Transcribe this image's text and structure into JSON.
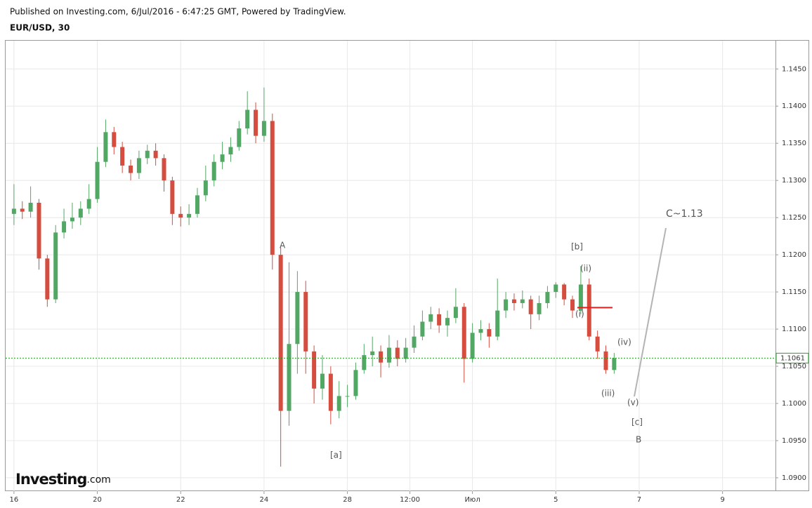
{
  "header": {
    "published": "Published on Investing.com, 6/Jul/2016 - 6:47:25 GMT, Powered by TradingView.",
    "symbol": "EUR/USD, 30",
    "logo": "Investing",
    "logo_suffix": ".com"
  },
  "chart_data": {
    "type": "candlestick",
    "up_color": "#53a764",
    "down_color": "#d54d3f",
    "x": [
      0,
      0.2,
      0.4,
      0.6,
      0.8,
      1,
      1.2,
      1.4,
      1.6,
      1.8,
      2,
      2.2,
      2.4,
      2.6,
      2.8,
      3,
      3.2,
      3.4,
      3.6,
      3.8,
      4,
      4.2,
      4.4,
      4.6,
      4.8,
      5,
      5.2,
      5.4,
      5.6,
      5.8,
      6,
      6.2,
      6.4,
      6.6,
      6.8,
      7,
      7.2,
      7.4,
      7.6,
      7.8,
      8,
      8.2,
      8.4,
      8.6,
      8.8,
      9,
      9.2,
      9.4,
      9.6,
      9.8,
      10,
      10.2,
      10.4,
      10.6,
      10.8,
      11,
      11.2,
      11.4,
      11.6,
      11.8,
      12,
      12.2,
      12.4,
      12.6,
      12.8,
      13,
      13.2,
      13.4,
      13.6,
      13.8,
      14,
      14.2,
      14.4
    ],
    "open": [
      1.1255,
      1.1262,
      1.1258,
      1.127,
      1.1195,
      1.114,
      1.123,
      1.1245,
      1.125,
      1.1262,
      1.1275,
      1.1325,
      1.1365,
      1.1345,
      1.132,
      1.131,
      1.133,
      1.134,
      1.133,
      1.13,
      1.1255,
      1.125,
      1.1255,
      1.128,
      1.13,
      1.1325,
      1.1335,
      1.1345,
      1.137,
      1.1395,
      1.136,
      1.138,
      1.12,
      1.099,
      1.108,
      1.115,
      1.107,
      1.102,
      1.104,
      1.099,
      1.101,
      1.101,
      1.1045,
      1.1065,
      1.107,
      1.1055,
      1.1075,
      1.106,
      1.1075,
      1.109,
      1.111,
      1.112,
      1.1105,
      1.1115,
      1.113,
      1.106,
      1.1095,
      1.11,
      1.109,
      1.1125,
      1.114,
      1.1135,
      1.114,
      1.112,
      1.1135,
      1.115,
      1.116,
      1.114,
      1.1125,
      1.116,
      1.109,
      1.107,
      1.1045
    ],
    "high": [
      1.1295,
      1.1272,
      1.1292,
      1.1275,
      1.12,
      1.124,
      1.1262,
      1.127,
      1.1272,
      1.1295,
      1.1345,
      1.1382,
      1.1372,
      1.1352,
      1.1328,
      1.134,
      1.1348,
      1.135,
      1.1335,
      1.1305,
      1.1265,
      1.1268,
      1.129,
      1.132,
      1.1335,
      1.1352,
      1.1358,
      1.138,
      1.142,
      1.1405,
      1.1425,
      1.139,
      1.121,
      1.119,
      1.1178,
      1.1165,
      1.1078,
      1.1065,
      1.105,
      1.103,
      1.1025,
      1.1055,
      1.108,
      1.109,
      1.1078,
      1.1092,
      1.1085,
      1.1088,
      1.1105,
      1.1125,
      1.113,
      1.1128,
      1.1125,
      1.1155,
      1.1135,
      1.1108,
      1.1112,
      1.1108,
      1.1168,
      1.115,
      1.1148,
      1.1152,
      1.1145,
      1.1145,
      1.1158,
      1.1163,
      1.1162,
      1.1145,
      1.1185,
      1.1168,
      1.1098,
      1.1078,
      1.1068
    ],
    "low": [
      1.124,
      1.1248,
      1.125,
      1.118,
      1.113,
      1.1135,
      1.1222,
      1.1235,
      1.124,
      1.1255,
      1.127,
      1.1318,
      1.1335,
      1.131,
      1.13,
      1.1302,
      1.1322,
      1.132,
      1.1285,
      1.124,
      1.1238,
      1.124,
      1.125,
      1.1272,
      1.1292,
      1.1315,
      1.1325,
      1.134,
      1.1362,
      1.135,
      1.1352,
      1.118,
      1.0915,
      1.097,
      1.104,
      1.104,
      1.1,
      1.1005,
      1.0972,
      1.098,
      1.0995,
      1.1005,
      1.104,
      1.105,
      1.1035,
      1.1048,
      1.105,
      1.1055,
      1.1068,
      1.1085,
      1.11,
      1.1095,
      1.109,
      1.1108,
      1.1028,
      1.1055,
      1.1085,
      1.1075,
      1.1085,
      1.1115,
      1.1125,
      1.1128,
      1.11,
      1.1112,
      1.1128,
      1.1142,
      1.1132,
      1.1115,
      1.112,
      1.1085,
      1.106,
      1.104,
      1.104
    ],
    "close": [
      1.1262,
      1.1258,
      1.127,
      1.1195,
      1.114,
      1.123,
      1.1245,
      1.125,
      1.1262,
      1.1275,
      1.1325,
      1.1365,
      1.1345,
      1.132,
      1.131,
      1.133,
      1.134,
      1.133,
      1.13,
      1.1255,
      1.125,
      1.1255,
      1.128,
      1.13,
      1.1325,
      1.1335,
      1.1345,
      1.137,
      1.1395,
      1.136,
      1.138,
      1.12,
      1.099,
      1.108,
      1.115,
      1.107,
      1.102,
      1.104,
      1.099,
      1.101,
      1.101,
      1.1045,
      1.1065,
      1.107,
      1.1055,
      1.1075,
      1.106,
      1.1075,
      1.109,
      1.111,
      1.112,
      1.1105,
      1.1115,
      1.113,
      1.106,
      1.1095,
      1.11,
      1.109,
      1.1125,
      1.114,
      1.1135,
      1.114,
      1.112,
      1.1135,
      1.115,
      1.116,
      1.114,
      1.1125,
      1.116,
      1.109,
      1.107,
      1.1045,
      1.1061
    ],
    "xlim": [
      -0.2,
      18.27
    ],
    "xticks": [
      {
        "value": 0,
        "label": "16"
      },
      {
        "value": 2,
        "label": "20"
      },
      {
        "value": 4,
        "label": "22"
      },
      {
        "value": 6,
        "label": "24"
      },
      {
        "value": 8,
        "label": "28"
      },
      {
        "value": 9.5,
        "label": "12:00"
      },
      {
        "value": 11,
        "label": "Июл"
      },
      {
        "value": 13,
        "label": "5"
      },
      {
        "value": 15,
        "label": "7"
      },
      {
        "value": 17,
        "label": "9"
      }
    ],
    "ylim": [
      1.0882,
      1.1488
    ],
    "yticks": [
      {
        "value": 1.09,
        "label": "1.0900"
      },
      {
        "value": 1.095,
        "label": "1.0950"
      },
      {
        "value": 1.1,
        "label": "1.1000"
      },
      {
        "value": 1.105,
        "label": "1.1050"
      },
      {
        "value": 1.11,
        "label": "1.1100"
      },
      {
        "value": 1.115,
        "label": "1.1150"
      },
      {
        "value": 1.12,
        "label": "1.1200"
      },
      {
        "value": 1.125,
        "label": "1.1250"
      },
      {
        "value": 1.13,
        "label": "1.1300"
      },
      {
        "value": 1.135,
        "label": "1.1350"
      },
      {
        "value": 1.14,
        "label": "1.1400"
      },
      {
        "value": 1.145,
        "label": "1.1450"
      }
    ],
    "grid": true,
    "last_price": {
      "value": 1.1061,
      "label": "1.1061",
      "color": "#1fa31f"
    },
    "level_line": {
      "value": 1.1129,
      "color": "#ee1c1c"
    },
    "annotations": [
      "A",
      "[a]",
      "[b]",
      "(ii)",
      "(i)",
      "(iv)",
      "(iii)",
      "(v)",
      "[c]",
      "B",
      "C~1.13"
    ]
  }
}
